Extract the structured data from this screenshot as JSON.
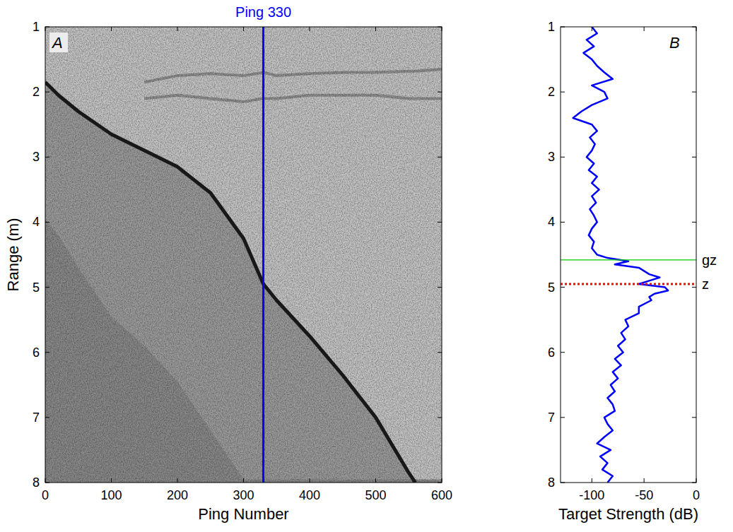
{
  "chart_data": [
    {
      "type": "line",
      "panel_label": "A",
      "xlabel": "Ping Number",
      "ylabel": "Range (m)",
      "xlim": [
        0,
        600
      ],
      "xticks": [
        0,
        100,
        200,
        300,
        400,
        500,
        600
      ],
      "ylim": [
        8,
        1
      ],
      "yticks": [
        1,
        2,
        3,
        4,
        5,
        6,
        7,
        8
      ],
      "x": [
        0,
        20,
        50,
        100,
        150,
        200,
        250,
        300,
        330,
        350,
        400,
        450,
        500,
        550,
        560,
        600
      ],
      "series": [
        {
          "type": "area",
          "color": "#9c9c9c",
          "line_style": "solid",
          "values": [
            1.85,
            2.05,
            2.3,
            2.65,
            2.9,
            3.15,
            3.55,
            4.25,
            4.95,
            5.2,
            5.75,
            6.35,
            7.0,
            7.85,
            8.0,
            null
          ]
        },
        {
          "type": "area",
          "color": "#8a8a8a",
          "line_style": "none",
          "values": [
            3.95,
            4.2,
            4.7,
            5.45,
            5.9,
            6.45,
            7.2,
            7.95,
            null,
            null,
            null,
            null,
            null,
            null,
            null,
            null
          ]
        },
        {
          "type": "line",
          "color": "#8f8f8f",
          "line_style": "solid",
          "values": [
            null,
            null,
            null,
            null,
            1.85,
            1.75,
            1.72,
            1.75,
            1.7,
            1.75,
            1.72,
            1.7,
            1.7,
            1.68,
            1.68,
            1.65
          ]
        },
        {
          "type": "line",
          "color": "#8f8f8f",
          "line_style": "solid",
          "values": [
            null,
            null,
            null,
            null,
            2.1,
            2.05,
            2.1,
            2.15,
            2.1,
            2.1,
            2.05,
            2.05,
            2.05,
            2.1,
            2.1,
            2.1
          ]
        }
      ],
      "annotations": [
        {
          "x": 330,
          "label": "Ping 330",
          "color": "#0000ff"
        }
      ]
    },
    {
      "type": "line",
      "orientation": "horizontal",
      "panel_label": "B",
      "xlabel": "Target Strength (dB)",
      "xlim": [
        -130,
        0
      ],
      "xticks": [
        -100,
        -50,
        0
      ],
      "ylim": [
        8,
        1
      ],
      "yticks": [
        1,
        2,
        3,
        4,
        5,
        6,
        7,
        8
      ],
      "x": [
        1.0,
        1.1,
        1.2,
        1.3,
        1.4,
        1.5,
        1.6,
        1.7,
        1.8,
        1.9,
        2.0,
        2.1,
        2.2,
        2.3,
        2.4,
        2.5,
        2.6,
        2.7,
        2.8,
        2.9,
        3.0,
        3.1,
        3.2,
        3.3,
        3.4,
        3.5,
        3.6,
        3.7,
        3.8,
        3.9,
        4.0,
        4.1,
        4.2,
        4.3,
        4.4,
        4.5,
        4.55,
        4.6,
        4.65,
        4.7,
        4.8,
        4.85,
        4.9,
        4.95,
        5.0,
        5.05,
        5.1,
        5.15,
        5.2,
        5.3,
        5.4,
        5.5,
        5.6,
        5.7,
        5.8,
        5.9,
        6.0,
        6.1,
        6.2,
        6.3,
        6.4,
        6.5,
        6.6,
        6.7,
        6.8,
        6.9,
        7.0,
        7.1,
        7.2,
        7.3,
        7.4,
        7.5,
        7.6,
        7.7,
        7.8,
        7.9,
        8.0
      ],
      "series": [
        {
          "color": "#0000ff",
          "line_style": "solid",
          "values": [
            -100,
            -95,
            -105,
            -98,
            -108,
            -100,
            -95,
            -88,
            -80,
            -100,
            -88,
            -85,
            -100,
            -110,
            -118,
            -100,
            -95,
            -102,
            -97,
            -100,
            -105,
            -98,
            -103,
            -95,
            -100,
            -93,
            -100,
            -96,
            -102,
            -98,
            -95,
            -100,
            -103,
            -98,
            -100,
            -95,
            -85,
            -65,
            -78,
            -55,
            -45,
            -35,
            -45,
            -55,
            -30,
            -27,
            -40,
            -45,
            -43,
            -55,
            -55,
            -68,
            -65,
            -72,
            -68,
            -75,
            -70,
            -78,
            -72,
            -80,
            -75,
            -82,
            -78,
            -85,
            -80,
            -78,
            -88,
            -85,
            -80,
            -88,
            -95,
            -82,
            -92,
            -85,
            -90,
            -80,
            -85
          ]
        }
      ],
      "reference_lines": [
        {
          "value": 4.58,
          "label": "gz",
          "color": "#00cc00",
          "line_style": "solid"
        },
        {
          "value": 4.95,
          "label": "z",
          "color": "#ff0000",
          "line_style": "dotted"
        }
      ]
    }
  ]
}
